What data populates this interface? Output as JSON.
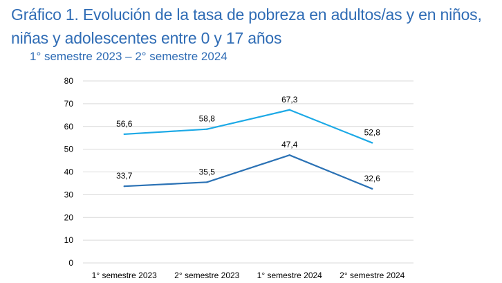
{
  "title": "Gráfico 1. Evolución de la tasa de pobreza en adultos/as y en niños, niñas y adolescentes entre 0 y 17 años",
  "subtitle": "1° semestre 2023 – 2° semestre 2024",
  "colors": {
    "accent": "#2f6cb5",
    "series_upper": "#1ca9e6",
    "series_lower": "#2b72b5",
    "grid": "#d9d9d9"
  },
  "chart_data": {
    "type": "line",
    "categories": [
      "1° semestre 2023",
      "2° semestre 2023",
      "1° semestre 2024",
      "2° semestre 2024"
    ],
    "series": [
      {
        "values": [
          56.6,
          58.8,
          67.3,
          52.8
        ],
        "labels": [
          "56,6",
          "58,8",
          "67,3",
          "52,8"
        ]
      },
      {
        "values": [
          33.7,
          35.5,
          47.4,
          32.6
        ],
        "labels": [
          "33,7",
          "35,5",
          "47,4",
          "32,6"
        ]
      }
    ],
    "ylim": [
      0,
      80
    ],
    "yticks": [
      0,
      10,
      20,
      30,
      40,
      50,
      60,
      70,
      80
    ],
    "grid": true,
    "legend": "none"
  }
}
